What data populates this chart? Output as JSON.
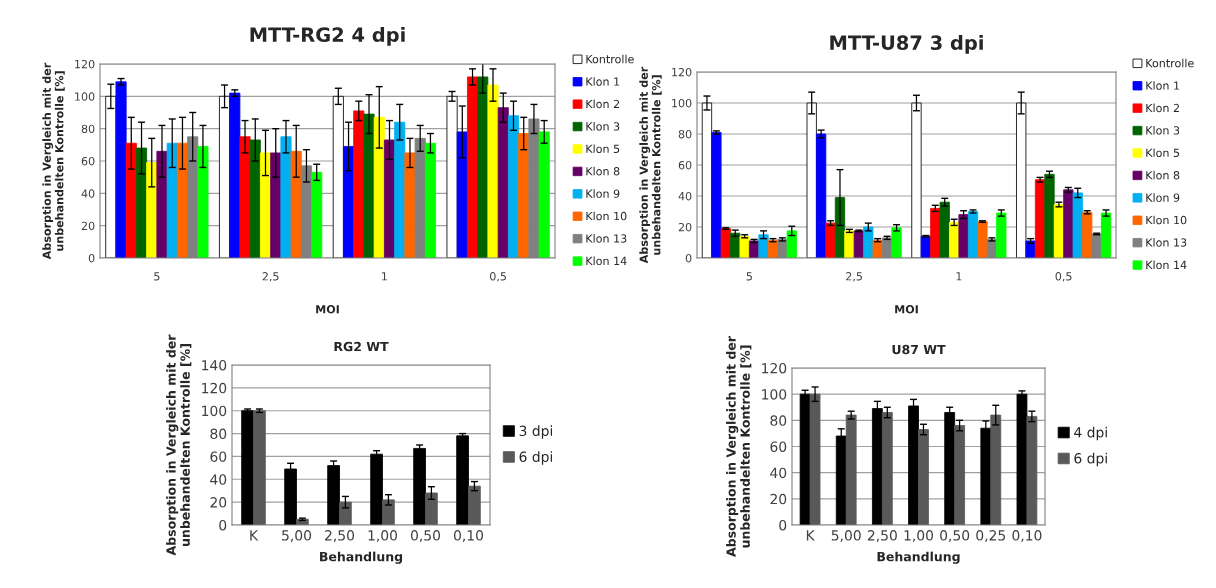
{
  "chart_data": [
    {
      "type": "bar",
      "title": "MTT-RG2 4 dpi",
      "xlabel": "MOI",
      "ylabel": "Absorption in Vergleich mit der\nunbehandelten Kontrolle [%]",
      "categories": [
        "5",
        "2,5",
        "1",
        "0,5"
      ],
      "ylim": [
        0,
        120
      ],
      "yticks": [
        0,
        20,
        40,
        60,
        80,
        100,
        120
      ],
      "grid": "y",
      "legend": "right",
      "series": [
        {
          "name": "Kontrolle",
          "color": "#ffffff",
          "values": [
            100,
            100,
            100,
            100
          ],
          "errors": [
            7.5,
            7,
            5,
            3
          ]
        },
        {
          "name": "Klon 1",
          "color": "#0000ff",
          "values": [
            109,
            102,
            69,
            78
          ],
          "errors": [
            2,
            2,
            15,
            16
          ]
        },
        {
          "name": "Klon 2",
          "color": "#ff0000",
          "values": [
            71,
            75,
            91,
            112
          ],
          "errors": [
            16,
            10,
            6,
            5
          ]
        },
        {
          "name": "Klon 3",
          "color": "#006400",
          "values": [
            68,
            73,
            89,
            112
          ],
          "errors": [
            16,
            13,
            12,
            10
          ]
        },
        {
          "name": "Klon 5",
          "color": "#ffff00",
          "values": [
            59,
            65,
            87,
            107
          ],
          "errors": [
            15,
            14,
            19,
            10
          ]
        },
        {
          "name": "Klon 8",
          "color": "#660066",
          "values": [
            66,
            65,
            73,
            93
          ],
          "errors": [
            16,
            15,
            12,
            9
          ]
        },
        {
          "name": "Klon 9",
          "color": "#00b0f0",
          "values": [
            71,
            75,
            84,
            88
          ],
          "errors": [
            15,
            10,
            11,
            9
          ]
        },
        {
          "name": "Klon 10",
          "color": "#ff6600",
          "values": [
            71,
            66,
            65,
            77
          ],
          "errors": [
            16,
            16,
            9,
            10
          ]
        },
        {
          "name": "Klon 13",
          "color": "#808080",
          "values": [
            75,
            57,
            74,
            86
          ],
          "errors": [
            15,
            10,
            8,
            9
          ]
        },
        {
          "name": "Klon 14",
          "color": "#00ff00",
          "values": [
            69,
            53,
            71,
            78
          ],
          "errors": [
            13,
            5,
            6,
            7
          ]
        }
      ]
    },
    {
      "type": "bar",
      "title": "MTT-U87 3 dpi",
      "xlabel": "MOI",
      "ylabel": "Absorption in Vergleich mit der\nunbehandelten Kontrolle [%]",
      "categories": [
        "5",
        "2,5",
        "1",
        "0,5"
      ],
      "ylim": [
        0,
        120
      ],
      "yticks": [
        0,
        20,
        40,
        60,
        80,
        100,
        120
      ],
      "grid": "y",
      "legend": "right",
      "series": [
        {
          "name": "Kontrolle",
          "color": "#ffffff",
          "values": [
            100,
            100,
            100,
            100
          ],
          "errors": [
            4.5,
            7,
            5,
            7
          ]
        },
        {
          "name": "Klon 1",
          "color": "#0000ff",
          "values": [
            81,
            80,
            14,
            11
          ],
          "errors": [
            1,
            2.5,
            0.5,
            1.5
          ]
        },
        {
          "name": "Klon 2",
          "color": "#ff0000",
          "values": [
            19,
            22.5,
            32,
            50.5
          ],
          "errors": [
            0.5,
            1.5,
            2,
            1.5
          ]
        },
        {
          "name": "Klon 3",
          "color": "#006400",
          "values": [
            16,
            39,
            36,
            54
          ],
          "errors": [
            2,
            18,
            2.5,
            2
          ]
        },
        {
          "name": "Klon 5",
          "color": "#ffff00",
          "values": [
            14,
            17.5,
            23,
            34.5
          ],
          "errors": [
            1,
            1,
            2,
            1.5
          ]
        },
        {
          "name": "Klon 8",
          "color": "#660066",
          "values": [
            11,
            17.5,
            28,
            44
          ],
          "errors": [
            1,
            0.5,
            2.5,
            1.5
          ]
        },
        {
          "name": "Klon 9",
          "color": "#00b0f0",
          "values": [
            15,
            20,
            30,
            42
          ],
          "errors": [
            2.5,
            2.5,
            1,
            3
          ]
        },
        {
          "name": "Klon 10",
          "color": "#ff6600",
          "values": [
            11.5,
            11.5,
            23.5,
            29.5
          ],
          "errors": [
            1,
            1,
            0.5,
            1
          ]
        },
        {
          "name": "Klon 13",
          "color": "#808080",
          "values": [
            12,
            13,
            12,
            15.5
          ],
          "errors": [
            1,
            1,
            1,
            0.5
          ]
        },
        {
          "name": "Klon 14",
          "color": "#00ff00",
          "values": [
            17.5,
            19.5,
            29,
            29
          ],
          "errors": [
            3,
            2,
            2,
            2
          ]
        }
      ]
    },
    {
      "type": "bar",
      "title": "RG2 WT",
      "xlabel": "Behandlung",
      "ylabel": "Absorption in Vergleich mit der\nunbehandelten Kontrolle [%]",
      "categories": [
        "K",
        "5,00",
        "2,50",
        "1,00",
        "0,50",
        "0,10"
      ],
      "ylim": [
        0,
        140
      ],
      "yticks": [
        0,
        20,
        40,
        60,
        80,
        100,
        120,
        140
      ],
      "grid": "y",
      "legend": "right",
      "series": [
        {
          "name": "3 dpi",
          "color": "#000000",
          "values": [
            100,
            49,
            52,
            62,
            67,
            78
          ],
          "errors": [
            1.5,
            5,
            4,
            3,
            3,
            2
          ]
        },
        {
          "name": "6 dpi",
          "color": "#595959",
          "values": [
            100,
            5,
            20,
            22,
            28,
            34
          ],
          "errors": [
            1.5,
            1,
            5,
            4.5,
            5.5,
            4
          ]
        }
      ]
    },
    {
      "type": "bar",
      "title": "U87 WT",
      "xlabel": "Behandlung",
      "ylabel": "Absorption in Vergleich mit der\nunbehandelten Kontrolle [%]",
      "categories": [
        "K",
        "5,00",
        "2,50",
        "1,00",
        "0,50",
        "0,25",
        "0,10"
      ],
      "ylim": [
        0,
        120
      ],
      "yticks": [
        0,
        20,
        40,
        60,
        80,
        100,
        120
      ],
      "grid": "y",
      "legend": "right",
      "series": [
        {
          "name": "4 dpi",
          "color": "#000000",
          "values": [
            100,
            68,
            89,
            91,
            86,
            74,
            100
          ],
          "errors": [
            3,
            5.5,
            5.5,
            5,
            4,
            5.5,
            2.5
          ]
        },
        {
          "name": "6 dpi",
          "color": "#595959",
          "values": [
            100,
            84,
            86,
            73,
            76,
            84,
            83
          ],
          "errors": [
            5.5,
            3,
            4,
            4,
            4,
            7.5,
            4
          ]
        }
      ]
    }
  ]
}
